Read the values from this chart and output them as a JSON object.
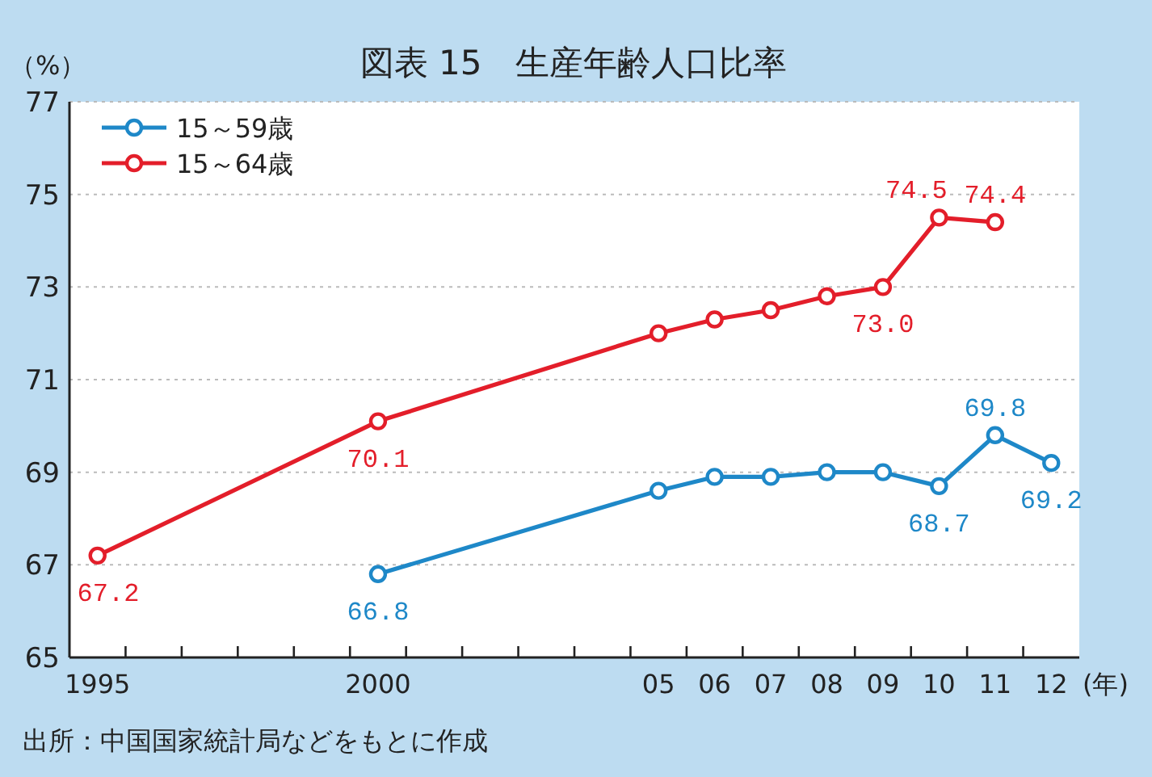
{
  "chart_data": {
    "type": "line",
    "title": "図表 15　生産年齢人口比率",
    "ylabel": "（%）",
    "xlabel": "(年)",
    "annotations": [
      "出所：中国国家統計局などをもとに作成"
    ],
    "x": [
      1995,
      2000,
      2005,
      2006,
      2007,
      2008,
      2009,
      2010,
      2011,
      2012
    ],
    "series": [
      {
        "name": "15～59歳",
        "color": "#1e88c8",
        "values": [
          null,
          66.8,
          68.6,
          68.9,
          68.9,
          69.0,
          69.0,
          68.7,
          69.8,
          69.2
        ],
        "value_labels": [
          null,
          "66.8",
          null,
          null,
          null,
          null,
          null,
          "68.7",
          "69.8",
          "69.2"
        ]
      },
      {
        "name": "15～64歳",
        "color": "#e31e2a",
        "values": [
          67.2,
          70.1,
          72.0,
          72.3,
          72.5,
          72.8,
          73.0,
          74.5,
          74.4,
          null
        ],
        "value_labels": [
          "67.2",
          "70.1",
          null,
          null,
          null,
          null,
          "73.0",
          "74.5",
          "74.4",
          null
        ]
      }
    ],
    "xlim": [
      1994.5,
      2012.5
    ],
    "xticks": [
      {
        "value": 1995,
        "label": "1995"
      },
      {
        "value": 2000,
        "label": "2000"
      },
      {
        "value": 2005,
        "label": "05"
      },
      {
        "value": 2006,
        "label": "06"
      },
      {
        "value": 2007,
        "label": "07"
      },
      {
        "value": 2008,
        "label": "08"
      },
      {
        "value": 2009,
        "label": "09"
      },
      {
        "value": 2010,
        "label": "10"
      },
      {
        "value": 2011,
        "label": "11"
      },
      {
        "value": 2012,
        "label": "12"
      },
      {
        "value": 1995.5,
        "label": null
      },
      {
        "value": 1996.5,
        "label": null
      },
      {
        "value": 1997.5,
        "label": null
      },
      {
        "value": 1998.5,
        "label": null
      },
      {
        "value": 1999.5,
        "label": null
      },
      {
        "value": 2000.5,
        "label": null
      },
      {
        "value": 2001.5,
        "label": null
      },
      {
        "value": 2002.5,
        "label": null
      },
      {
        "value": 2003.5,
        "label": null
      },
      {
        "value": 2004.5,
        "label": null
      },
      {
        "value": 2005.5,
        "label": null
      },
      {
        "value": 2006.5,
        "label": null
      },
      {
        "value": 2007.5,
        "label": null
      },
      {
        "value": 2008.5,
        "label": null
      },
      {
        "value": 2009.5,
        "label": null
      },
      {
        "value": 2010.5,
        "label": null
      },
      {
        "value": 2011.5,
        "label": null
      }
    ],
    "ylim": [
      65,
      77
    ],
    "yticks": [
      65,
      67,
      69,
      71,
      73,
      75,
      77
    ],
    "grid": "y",
    "legend": "top left",
    "marker": "circle",
    "line_style": "solid"
  }
}
